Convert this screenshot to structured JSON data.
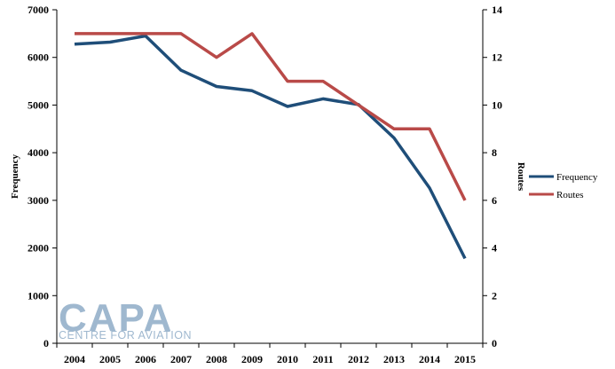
{
  "chart_data": {
    "type": "line",
    "categories": [
      "2004",
      "2005",
      "2006",
      "2007",
      "2008",
      "2009",
      "2010",
      "2011",
      "2012",
      "2013",
      "2014",
      "2015"
    ],
    "series": [
      {
        "name": "Frequency",
        "axis": "left",
        "color": "#1f4e79",
        "values": [
          6280,
          6320,
          6450,
          5730,
          5390,
          5300,
          4970,
          5130,
          5010,
          4310,
          3260,
          1780
        ]
      },
      {
        "name": "Routes",
        "axis": "right",
        "color": "#b94a48",
        "values": [
          13,
          13,
          13,
          13,
          12,
          13,
          11,
          11,
          10,
          9,
          9,
          6
        ]
      }
    ],
    "ylabel_left": "Frequency",
    "ylabel_right": "Routes",
    "ylim_left": [
      0,
      7000
    ],
    "ylim_right": [
      0,
      14
    ],
    "yticks_left": [
      "0",
      "1000",
      "2000",
      "3000",
      "4000",
      "5000",
      "6000",
      "7000"
    ],
    "yticks_right": [
      "0",
      "2",
      "4",
      "6",
      "8",
      "10",
      "12",
      "14"
    ],
    "legend": [
      "Frequency",
      "Routes"
    ],
    "legend_position": "right",
    "grid": false
  },
  "watermark": {
    "logo": "CAPA",
    "subtitle": "CENTRE FOR AVIATION"
  }
}
